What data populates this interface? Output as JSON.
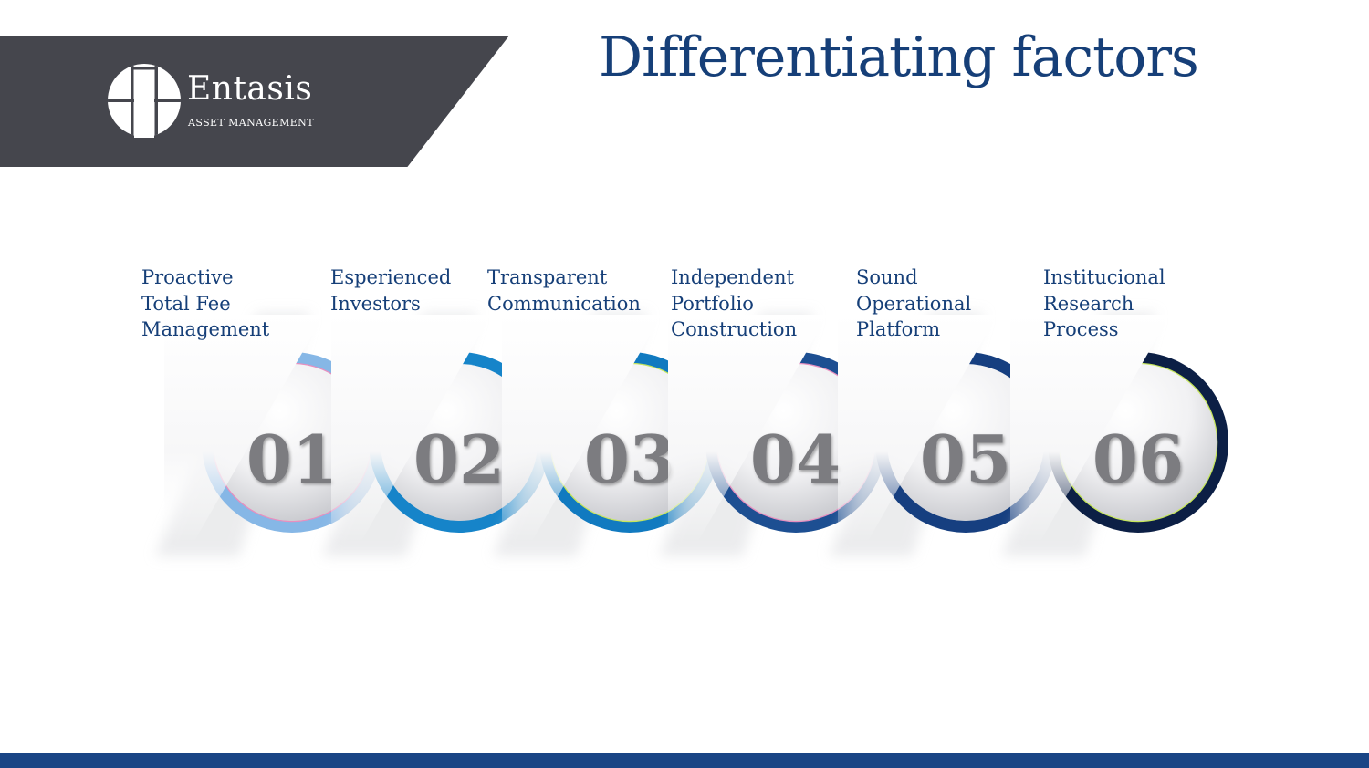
{
  "header": {
    "brand_name": "Entasis",
    "brand_sub": "ASSET MANAGEMENT",
    "logo_icon": "column-in-circle-icon"
  },
  "title": "Differentiating factors",
  "colors": {
    "banner": "#45464d",
    "title": "#163f78",
    "bottom_bar": "#1a4585",
    "number_text": "#7c7c80"
  },
  "steps": [
    {
      "number": "01",
      "lines": [
        "Proactive",
        "Total Fee",
        "Management"
      ],
      "ring_color": "#86b7e6",
      "edge_color": "#e78fbf"
    },
    {
      "number": "02",
      "lines": [
        "Esperienced",
        "Investors"
      ],
      "ring_color": "#1684c9",
      "edge_color": "#1684c9"
    },
    {
      "number": "03",
      "lines": [
        "Transparent",
        "Communication"
      ],
      "ring_color": "#117ac0",
      "edge_color": "#c6e65c"
    },
    {
      "number": "04",
      "lines": [
        "Independent",
        "Portfolio",
        "Construction"
      ],
      "ring_color": "#1d4f92",
      "edge_color": "#e78fbf"
    },
    {
      "number": "05",
      "lines": [
        "Sound",
        "Operational",
        "Platform"
      ],
      "ring_color": "#163f80",
      "edge_color": "#163f80"
    },
    {
      "number": "06",
      "lines": [
        "Institucional",
        "Research",
        "Process"
      ],
      "ring_color": "#0c1f45",
      "edge_color": "#c6e65c"
    }
  ]
}
